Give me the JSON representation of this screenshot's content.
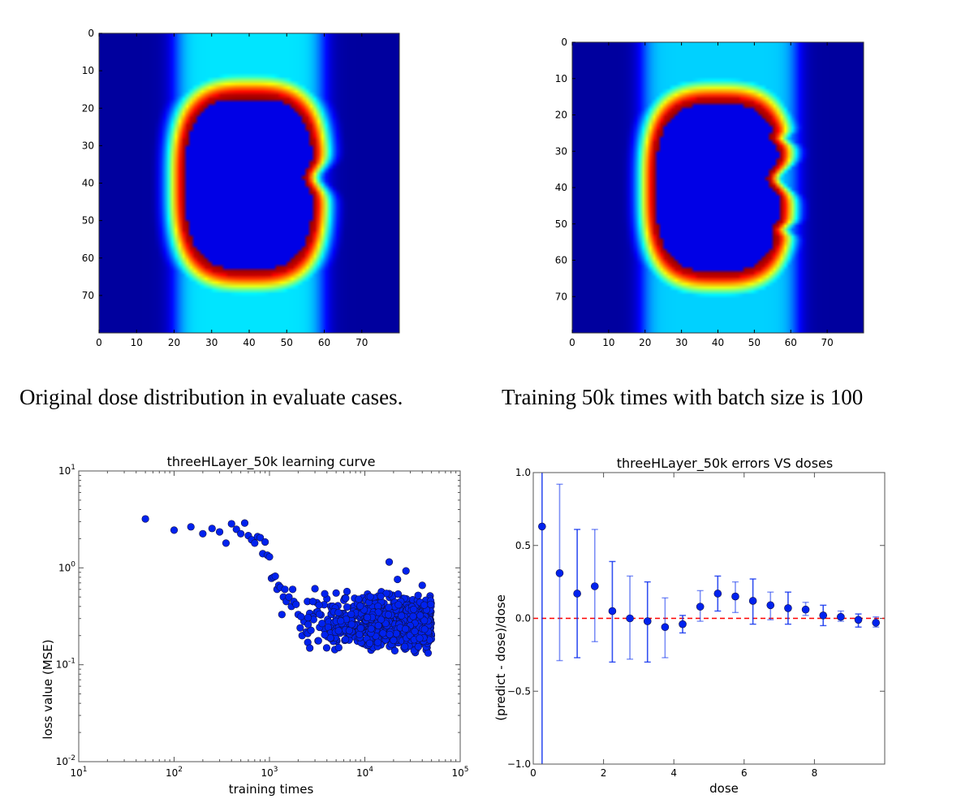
{
  "captions": {
    "left": "Original dose distribution in evaluate cases.",
    "right": "Training 50k times with batch size is 100"
  },
  "chart_data": [
    {
      "id": "heatmap-original",
      "type": "heatmap",
      "title": "",
      "colormap": "jet",
      "grid_size": [
        80,
        80
      ],
      "xlim": [
        0,
        80
      ],
      "ylim": [
        80,
        0
      ],
      "xticks": [
        0,
        10,
        20,
        30,
        40,
        50,
        60,
        70
      ],
      "yticks": [
        0,
        10,
        20,
        30,
        40,
        50,
        60,
        70
      ],
      "description": "Vertical band of moderate dose (x≈20–60) around a high-dose ring (red) enclosing a zero-dose cavity spanning x≈23–56, y≈17–62, with a notch on the right at y≈38",
      "band": {
        "x_left": 20,
        "x_right": 59,
        "band_value": 0.35
      },
      "ring": {
        "cx": 39.5,
        "cy": 39.5,
        "rx_left": 17,
        "rx_right": 17,
        "ry_top": 22.5,
        "ry_bottom": 23,
        "notch_y": 38,
        "notch_depth": 2.5,
        "ring_value": 0.95,
        "inner_value": 0.0
      }
    },
    {
      "id": "heatmap-predicted",
      "type": "heatmap",
      "title": "",
      "colormap": "jet",
      "grid_size": [
        80,
        80
      ],
      "xlim": [
        0,
        80
      ],
      "ylim": [
        80,
        0
      ],
      "xticks": [
        0,
        10,
        20,
        30,
        40,
        50,
        60,
        70
      ],
      "yticks": [
        0,
        10,
        20,
        30,
        40,
        50,
        60,
        70
      ],
      "description": "Predicted dose after 50k training iterations; similar ring shape with sharper right-side notches at y≈26, 38 and 51",
      "band": {
        "x_left": 19,
        "x_right": 61,
        "band_value": 0.33
      },
      "ring": {
        "cx": 39.5,
        "cy": 39.5,
        "rx_left": 17,
        "rx_right": 17,
        "ry_top": 23,
        "ry_bottom": 23,
        "notch_y": 37,
        "notch_depth": 3.5,
        "ring_value": 0.95,
        "inner_value": 0.0,
        "extra_notches": [
          26,
          51
        ]
      }
    },
    {
      "id": "learning-curve",
      "type": "scatter",
      "title": "threeHLayer_50k learning curve",
      "xlabel": "training times",
      "ylabel": "loss value (MSE)",
      "xscale": "log",
      "yscale": "log",
      "xlim": [
        10,
        100000
      ],
      "ylim": [
        0.01,
        10
      ],
      "xticks": [
        "10^1",
        "10^2",
        "10^3",
        "10^4",
        "10^5"
      ],
      "yticks": [
        "10^-2",
        "10^-1",
        "10^0",
        "10^1"
      ],
      "marker_color": "#0022ee",
      "points_early": [
        [
          50,
          3.2
        ],
        [
          100,
          2.45
        ],
        [
          150,
          2.65
        ],
        [
          200,
          2.25
        ],
        [
          250,
          2.55
        ],
        [
          300,
          2.35
        ],
        [
          350,
          1.8
        ],
        [
          400,
          2.85
        ],
        [
          450,
          2.5
        ],
        [
          500,
          2.25
        ],
        [
          550,
          2.9
        ],
        [
          600,
          2.15
        ],
        [
          650,
          1.95
        ],
        [
          700,
          1.8
        ],
        [
          750,
          2.1
        ],
        [
          800,
          2.05
        ],
        [
          850,
          1.4
        ],
        [
          900,
          1.85
        ],
        [
          950,
          1.35
        ],
        [
          1000,
          1.3
        ],
        [
          1050,
          0.78
        ],
        [
          1100,
          0.8
        ],
        [
          1150,
          0.82
        ],
        [
          1200,
          0.6
        ],
        [
          1250,
          0.66
        ],
        [
          1300,
          0.63
        ],
        [
          1350,
          0.33
        ],
        [
          1400,
          0.5
        ],
        [
          1450,
          0.6
        ],
        [
          1500,
          0.45
        ],
        [
          1600,
          0.5
        ],
        [
          1700,
          0.4
        ],
        [
          1750,
          0.6
        ],
        [
          1800,
          0.45
        ],
        [
          1900,
          0.42
        ],
        [
          2000,
          0.33
        ],
        [
          2100,
          0.24
        ],
        [
          2200,
          0.2
        ],
        [
          2300,
          0.28
        ],
        [
          2500,
          0.45
        ],
        [
          3000,
          0.61
        ],
        [
          4000,
          0.48
        ],
        [
          5000,
          0.55
        ],
        [
          6500,
          0.57
        ],
        [
          18000,
          1.15
        ],
        [
          27000,
          0.93
        ],
        [
          22000,
          0.76
        ],
        [
          40000,
          0.66
        ]
      ],
      "cloud": {
        "x_range": [
          2000,
          50000
        ],
        "y_median": 0.27,
        "y_spread_decades": 0.22,
        "count": 900,
        "y_min": 0.093
      }
    },
    {
      "id": "errors-vs-doses",
      "type": "scatter",
      "title": "threeHLayer_50k errors VS doses",
      "xlabel": "dose",
      "ylabel": "(predict - dose)/dose",
      "xlim": [
        0,
        10
      ],
      "ylim": [
        -1.0,
        1.0
      ],
      "xticks": [
        0,
        2,
        4,
        6,
        8
      ],
      "yticks": [
        -1.0,
        -0.5,
        0.0,
        0.5,
        1.0
      ],
      "ytick_labels": [
        "−1.0",
        "−0.5",
        "0.0",
        "0.5",
        "1.0"
      ],
      "reference_line": {
        "y": 0.0,
        "style": "dashed",
        "color": "#ff0000"
      },
      "marker_color": "#0022ee",
      "points": [
        {
          "x": 0.25,
          "y": 0.63,
          "lo": -1.0,
          "hi": 1.0
        },
        {
          "x": 0.75,
          "y": 0.31,
          "lo": -0.29,
          "hi": 0.92
        },
        {
          "x": 1.25,
          "y": 0.17,
          "lo": -0.27,
          "hi": 0.61
        },
        {
          "x": 1.75,
          "y": 0.22,
          "lo": -0.16,
          "hi": 0.61
        },
        {
          "x": 2.25,
          "y": 0.05,
          "lo": -0.3,
          "hi": 0.39
        },
        {
          "x": 2.75,
          "y": 0.0,
          "lo": -0.28,
          "hi": 0.29
        },
        {
          "x": 3.25,
          "y": -0.02,
          "lo": -0.3,
          "hi": 0.25
        },
        {
          "x": 3.75,
          "y": -0.06,
          "lo": -0.27,
          "hi": 0.14
        },
        {
          "x": 4.25,
          "y": -0.04,
          "lo": -0.1,
          "hi": 0.02
        },
        {
          "x": 4.75,
          "y": 0.08,
          "lo": -0.02,
          "hi": 0.19
        },
        {
          "x": 5.25,
          "y": 0.17,
          "lo": 0.05,
          "hi": 0.29
        },
        {
          "x": 5.75,
          "y": 0.15,
          "lo": 0.04,
          "hi": 0.25
        },
        {
          "x": 6.25,
          "y": 0.12,
          "lo": -0.04,
          "hi": 0.27
        },
        {
          "x": 6.75,
          "y": 0.09,
          "lo": -0.01,
          "hi": 0.18
        },
        {
          "x": 7.25,
          "y": 0.07,
          "lo": -0.04,
          "hi": 0.18
        },
        {
          "x": 7.75,
          "y": 0.06,
          "lo": 0.02,
          "hi": 0.11
        },
        {
          "x": 8.25,
          "y": 0.02,
          "lo": -0.05,
          "hi": 0.09
        },
        {
          "x": 8.75,
          "y": 0.01,
          "lo": -0.02,
          "hi": 0.05
        },
        {
          "x": 9.25,
          "y": -0.01,
          "lo": -0.06,
          "hi": 0.03
        },
        {
          "x": 9.75,
          "y": -0.03,
          "lo": -0.06,
          "hi": 0.01
        }
      ]
    }
  ]
}
